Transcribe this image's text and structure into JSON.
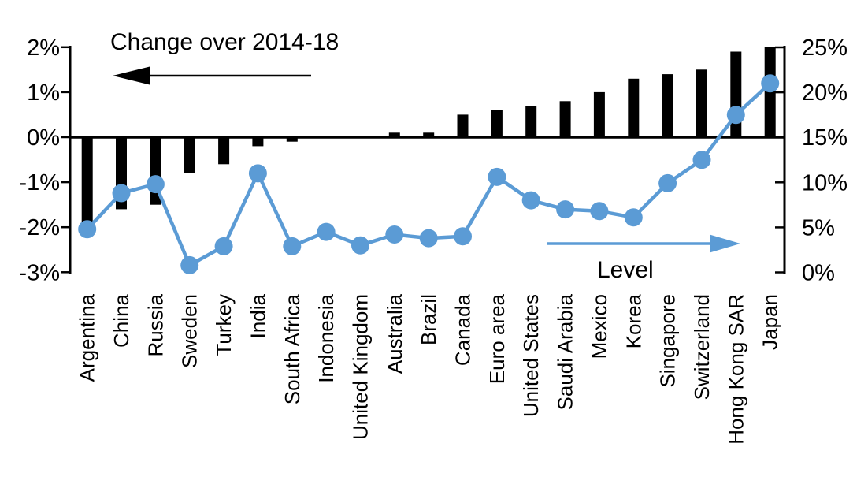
{
  "annotations": {
    "bar_arrow_label": "Change over 2014-18",
    "line_arrow_label": "Level"
  },
  "colors": {
    "bar": "#000000",
    "line": "#5B9BD5",
    "axis": "#000000",
    "text": "#000000",
    "background": "#FFFFFF"
  },
  "left_axis": {
    "side": "left",
    "unit": "%",
    "min": -3,
    "max": 2,
    "tick_values": [
      2,
      1,
      0,
      -1,
      -2,
      -3
    ],
    "tick_labels": [
      "2%",
      "1%",
      "0%",
      "-1%",
      "-2%",
      "-3%"
    ]
  },
  "right_axis": {
    "side": "right",
    "unit": "%",
    "min": 0,
    "max": 25,
    "tick_values": [
      25,
      20,
      15,
      10,
      5,
      0
    ],
    "tick_labels": [
      "25%",
      "20%",
      "15%",
      "10%",
      "5%",
      "0%"
    ]
  },
  "chart_data": {
    "type": "combo-bar-line",
    "title": "",
    "xlabel": "",
    "ylabel_left": "Change over 2014-18 (%)",
    "ylabel_right": "Level (%)",
    "grid": false,
    "legend_position": "in-plot arrow annotations",
    "left_ylim": [
      -3,
      2
    ],
    "right_ylim": [
      0,
      25
    ],
    "categories": [
      "Argentina",
      "China",
      "Russia",
      "Sweden",
      "Turkey",
      "India",
      "South Africa",
      "Indonesia",
      "United Kingdom",
      "Australia",
      "Brazil",
      "Canada",
      "Euro area",
      "United States",
      "Saudi Arabia",
      "Mexico",
      "Korea",
      "Singapore",
      "Switzerland",
      "Hong Kong SAR",
      "Japan"
    ],
    "series": [
      {
        "name": "Change over 2014-18",
        "kind": "bar",
        "axis": "left",
        "unit": "%",
        "color": "#000000",
        "values": [
          -1.9,
          -1.6,
          -1.5,
          -0.8,
          -0.6,
          -0.2,
          -0.1,
          0.0,
          0.0,
          0.1,
          0.1,
          0.5,
          0.6,
          0.7,
          0.8,
          1.0,
          1.3,
          1.4,
          1.5,
          1.9,
          2.0
        ]
      },
      {
        "name": "Level",
        "kind": "line",
        "axis": "right",
        "unit": "%",
        "color": "#5B9BD5",
        "values": [
          4.8,
          8.8,
          9.8,
          0.8,
          2.9,
          11.0,
          2.9,
          4.5,
          3.0,
          4.2,
          3.8,
          4.0,
          10.6,
          8.0,
          7.0,
          6.8,
          6.1,
          9.9,
          12.5,
          17.5,
          21.0
        ]
      }
    ]
  }
}
